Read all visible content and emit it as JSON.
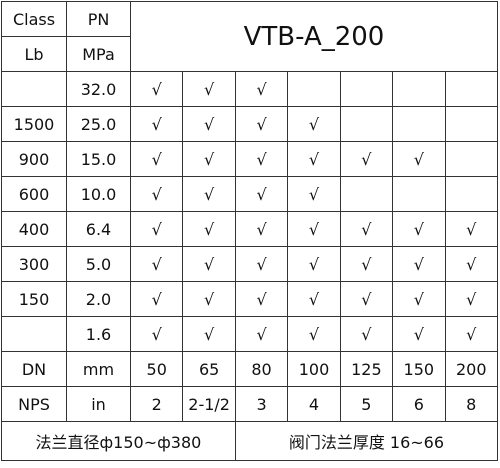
{
  "header": {
    "class_label": "Class",
    "pn_label": "PN",
    "lb_label": "Lb",
    "mpa_label": "MPa",
    "model": "VTB-A_200"
  },
  "rows": [
    {
      "class": null,
      "pn": "32.0",
      "checks": [
        "√",
        "√",
        "√",
        null,
        null,
        null,
        null
      ]
    },
    {
      "class": "1500",
      "pn": "25.0",
      "checks": [
        "√",
        "√",
        "√",
        "√",
        null,
        null,
        null
      ]
    },
    {
      "class": "900",
      "pn": "15.0",
      "checks": [
        "√",
        "√",
        "√",
        "√",
        "√",
        "√",
        null
      ]
    },
    {
      "class": "600",
      "pn": "10.0",
      "checks": [
        "√",
        "√",
        "√",
        "√",
        null,
        null,
        null
      ]
    },
    {
      "class": "400",
      "pn": "6.4",
      "checks": [
        "√",
        "√",
        "√",
        "√",
        "√",
        "√",
        "√"
      ]
    },
    {
      "class": "300",
      "pn": "5.0",
      "checks": [
        "√",
        "√",
        "√",
        "√",
        "√",
        "√",
        "√"
      ]
    },
    {
      "class": "150",
      "pn": "2.0",
      "checks": [
        "√",
        "√",
        "√",
        "√",
        "√",
        "√",
        "√"
      ]
    },
    {
      "class": null,
      "pn": "1.6",
      "checks": [
        "√",
        "√",
        "√",
        "√",
        "√",
        "√",
        "√"
      ]
    }
  ],
  "size_rows": [
    {
      "label": "DN",
      "unit": "mm",
      "values": [
        "50",
        "65",
        "80",
        "100",
        "125",
        "150",
        "200"
      ]
    },
    {
      "label": "NPS",
      "unit": "in",
      "values": [
        "2",
        "2-1/2",
        "3",
        "4",
        "5",
        "6",
        "8"
      ]
    }
  ],
  "footer": {
    "left": "法兰直径ф150~ф380",
    "right": "阀门法兰厚度 16~66"
  }
}
